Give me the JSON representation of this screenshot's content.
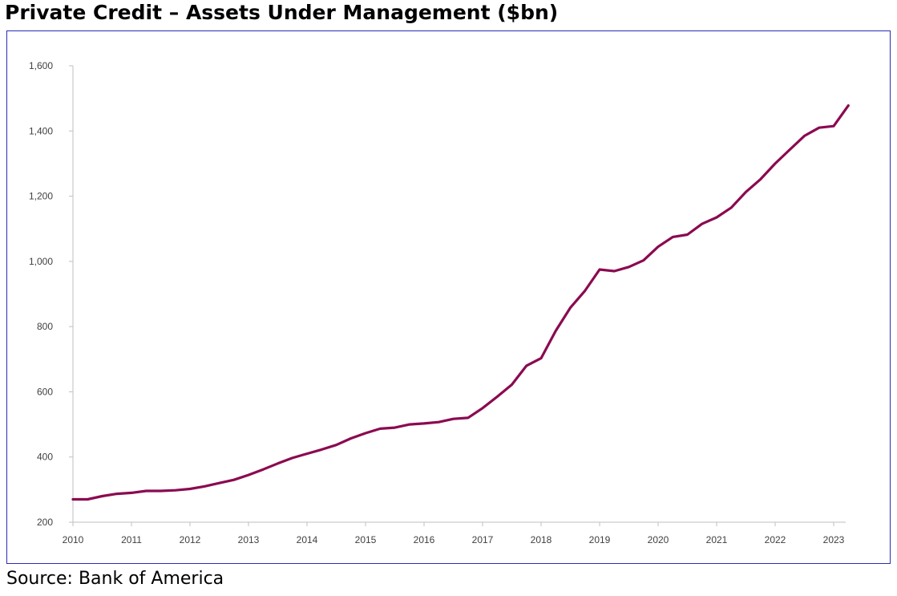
{
  "header": {
    "title": "Private Credit – Assets Under Management ($bn)"
  },
  "footer": {
    "source": "Source: Bank of America"
  },
  "chart_data": {
    "type": "line",
    "title": "Private Credit – Assets Under Management ($bn)",
    "xlabel": "",
    "ylabel": "",
    "x_ticks": [
      "2010",
      "2011",
      "2012",
      "2013",
      "2014",
      "2015",
      "2016",
      "2017",
      "2018",
      "2019",
      "2020",
      "2021",
      "2022",
      "2023"
    ],
    "y_ticks": [
      "200",
      "400",
      "600",
      "800",
      "1,000",
      "1,200",
      "1,400",
      "1,600"
    ],
    "y_tick_values": [
      200,
      400,
      600,
      800,
      1000,
      1200,
      1400,
      1600
    ],
    "xlim": [
      2010,
      2023.3
    ],
    "ylim": [
      200,
      1600
    ],
    "grid": false,
    "line_color": "#8b0a50",
    "series": [
      {
        "x": [
          2010.0,
          2010.25,
          2010.5,
          2010.75,
          2011.0,
          2011.25,
          2011.5,
          2011.75,
          2012.0,
          2012.25,
          2012.5,
          2012.75,
          2013.0,
          2013.25,
          2013.5,
          2013.75,
          2014.0,
          2014.25,
          2014.5,
          2014.75,
          2015.0,
          2015.25,
          2015.5,
          2015.75,
          2016.0,
          2016.25,
          2016.5,
          2016.75,
          2017.0,
          2017.25,
          2017.5,
          2017.75,
          2018.0,
          2018.25,
          2018.5,
          2018.75,
          2019.0,
          2019.25,
          2019.5,
          2019.75,
          2020.0,
          2020.25,
          2020.5,
          2020.75,
          2021.0,
          2021.25,
          2021.5,
          2021.75,
          2022.0,
          2022.25,
          2022.5,
          2022.75,
          2023.0,
          2023.25
        ],
        "values": [
          270,
          270,
          280,
          287,
          290,
          296,
          296,
          298,
          302,
          310,
          320,
          330,
          345,
          362,
          380,
          397,
          410,
          423,
          437,
          457,
          473,
          487,
          490,
          500,
          503,
          507,
          517,
          520,
          550,
          585,
          622,
          680,
          703,
          787,
          858,
          910,
          975,
          970,
          983,
          1003,
          1045,
          1075,
          1082,
          1115,
          1135,
          1165,
          1213,
          1252,
          1300,
          1343,
          1385,
          1410,
          1415,
          1478
        ]
      }
    ]
  }
}
